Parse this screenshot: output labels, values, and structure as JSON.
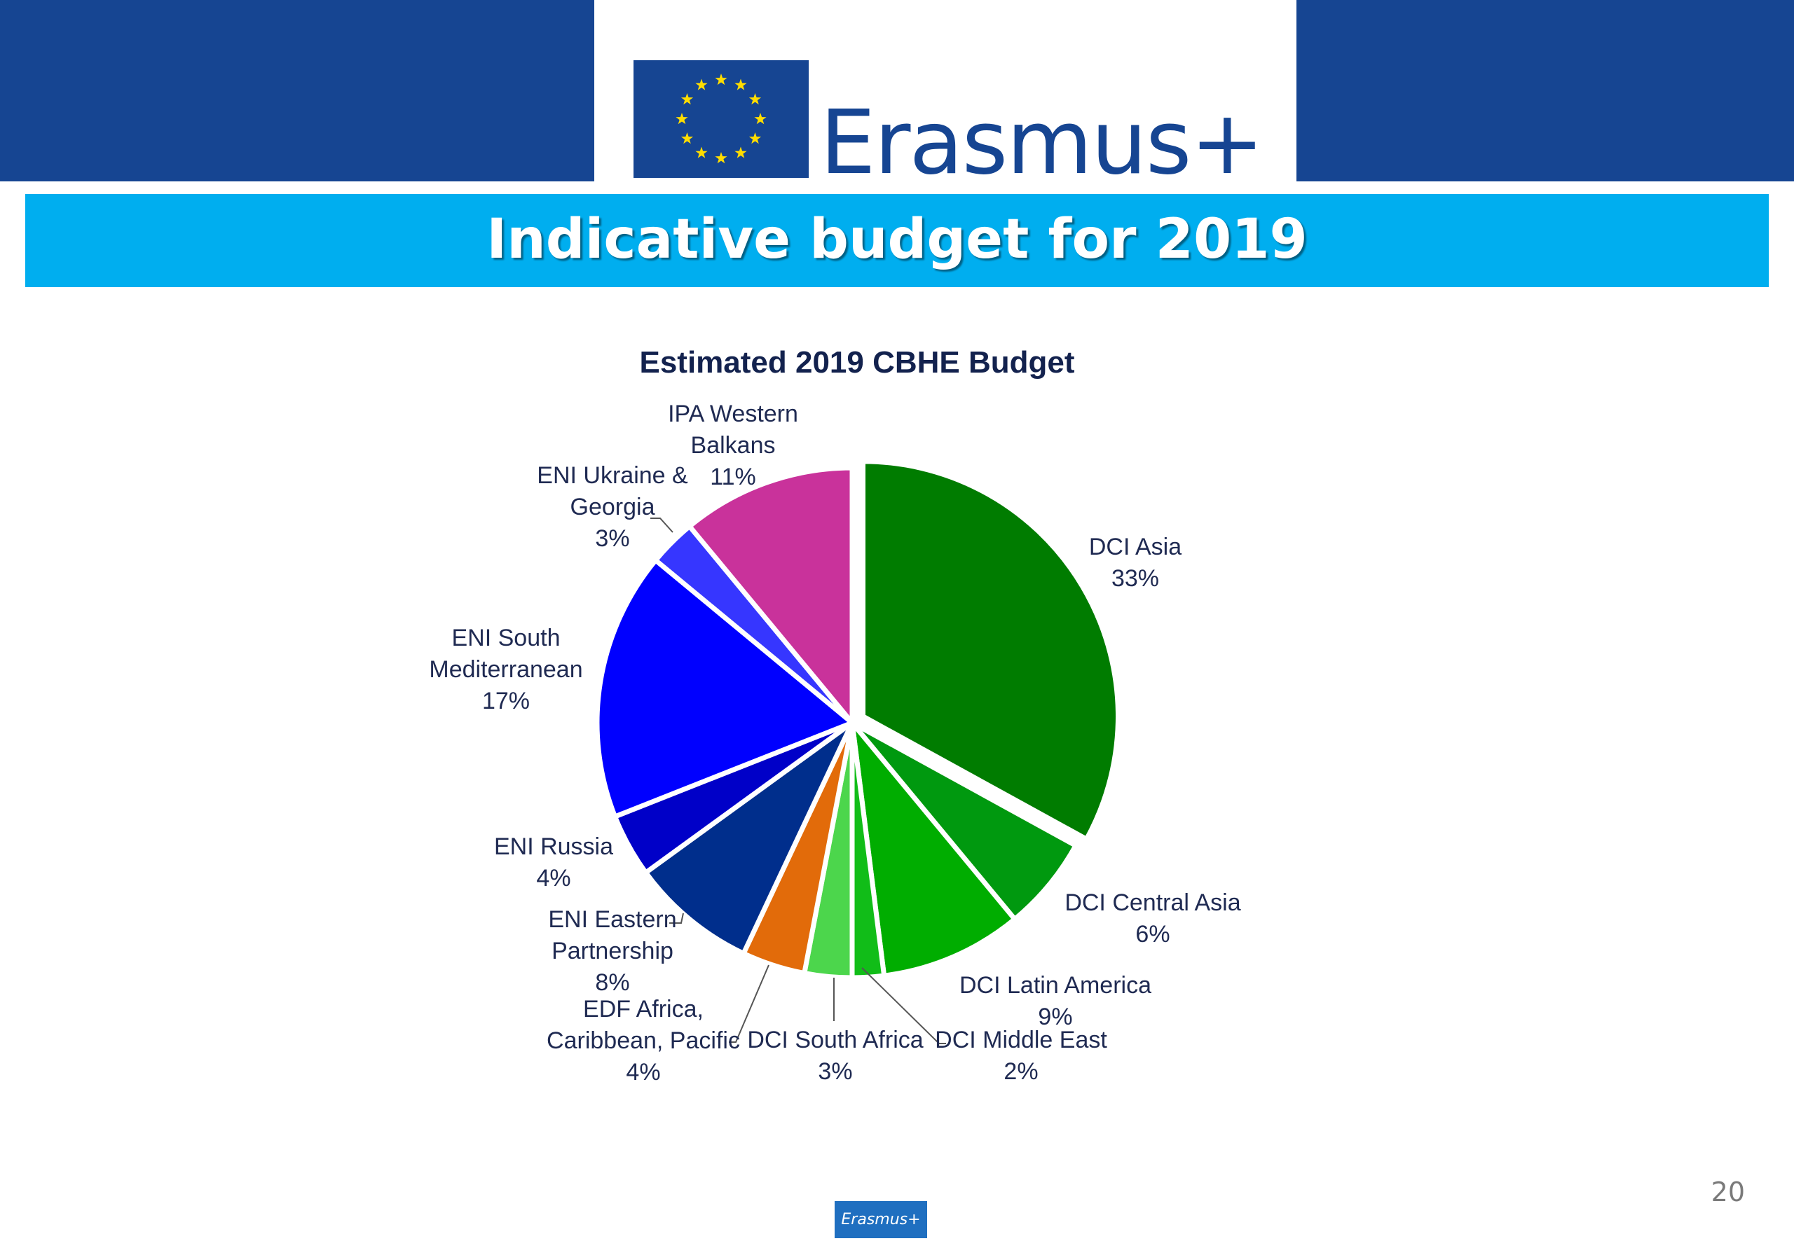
{
  "header": {
    "logo_text": "Erasmus+",
    "title": "Indicative budget for 2019",
    "colors": {
      "band": "#164592",
      "title_bar": "#00aeef"
    }
  },
  "chart_data": {
    "type": "pie",
    "title": "Estimated 2019 CBHE Budget",
    "start_angle_deg": 0,
    "direction": "clockwise",
    "exploded": [
      "DCI Asia"
    ],
    "slices": [
      {
        "label": "DCI Asia",
        "value": 33,
        "display": "33%",
        "color": "#007c00"
      },
      {
        "label": "DCI Central Asia",
        "value": 6,
        "display": "6%",
        "color": "#00990f"
      },
      {
        "label": "DCI Latin America",
        "value": 9,
        "display": "9%",
        "color": "#00ad00"
      },
      {
        "label": "DCI Middle East",
        "value": 2,
        "display": "2%",
        "color": "#11bd18"
      },
      {
        "label": "DCI South Africa",
        "value": 3,
        "display": "3%",
        "color": "#4cd64c"
      },
      {
        "label": "EDF Africa, Caribbean, Pacific",
        "value": 4,
        "display": "4%",
        "color": "#e26b0a"
      },
      {
        "label": "ENI Eastern Partnership",
        "value": 8,
        "display": "8%",
        "color": "#002e8c"
      },
      {
        "label": "ENI Russia",
        "value": 4,
        "display": "4%",
        "color": "#0000c8"
      },
      {
        "label": "ENI South Mediterranean",
        "value": 17,
        "display": "17%",
        "color": "#0000ff"
      },
      {
        "label": "ENI Ukraine & Georgia",
        "value": 3,
        "display": "3%",
        "color": "#3636ff"
      },
      {
        "label": "IPA Western Balkans",
        "value": 11,
        "display": "11%",
        "color": "#c9329b"
      }
    ]
  },
  "footer": {
    "logo_text": "Erasmus+",
    "page_number": "20"
  }
}
